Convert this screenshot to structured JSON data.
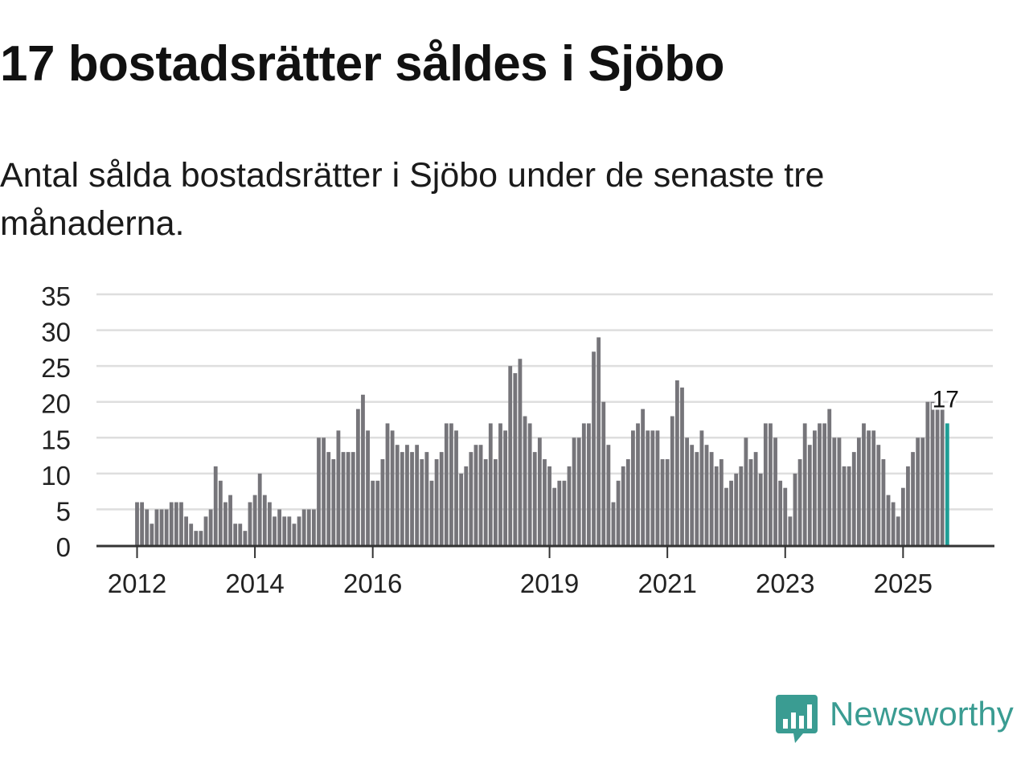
{
  "title": "17 bostadsrätter såldes i Sjöbo",
  "subtitle": "Antal sålda bostadsrätter i Sjöbo under de senaste tre månaderna.",
  "logo": {
    "text": "Newsworthy",
    "icon": "newsworthy-logo-icon",
    "color": "#3a9c92"
  },
  "colors": {
    "bar": "#76757a",
    "highlight": "#1f9e96",
    "grid": "#dedede",
    "axis": "#333333",
    "text": "#222222"
  },
  "chart_data": {
    "type": "bar",
    "title": "17 bostadsrätter såldes i Sjöbo",
    "xlabel": "",
    "ylabel": "",
    "ylim": [
      0,
      35
    ],
    "yticks": [
      0,
      5,
      10,
      15,
      20,
      25,
      30,
      35
    ],
    "xtick_labels": [
      "2012",
      "2014",
      "2016",
      "2019",
      "2021",
      "2023",
      "2025"
    ],
    "xtick_positions": [
      0,
      24,
      48,
      84,
      108,
      132,
      156
    ],
    "start": "2012-01",
    "grid": true,
    "legend": "none",
    "values": [
      6,
      6,
      5,
      3,
      5,
      5,
      5,
      6,
      6,
      6,
      4,
      3,
      2,
      2,
      4,
      5,
      11,
      9,
      6,
      7,
      3,
      3,
      2,
      6,
      7,
      10,
      7,
      6,
      4,
      5,
      4,
      4,
      3,
      4,
      5,
      5,
      5,
      15,
      15,
      13,
      12,
      16,
      13,
      13,
      13,
      19,
      21,
      16,
      9,
      9,
      12,
      17,
      16,
      14,
      13,
      14,
      13,
      14,
      12,
      13,
      9,
      12,
      13,
      17,
      17,
      16,
      10,
      11,
      13,
      14,
      14,
      12,
      17,
      12,
      17,
      16,
      25,
      24,
      26,
      18,
      17,
      13,
      15,
      12,
      11,
      8,
      9,
      9,
      11,
      15,
      15,
      17,
      17,
      27,
      29,
      20,
      14,
      6,
      9,
      11,
      12,
      16,
      17,
      19,
      16,
      16,
      16,
      12,
      12,
      18,
      23,
      22,
      15,
      14,
      13,
      16,
      14,
      13,
      11,
      12,
      8,
      9,
      10,
      11,
      15,
      12,
      13,
      10,
      17,
      17,
      15,
      9,
      8,
      4,
      10,
      12,
      17,
      14,
      16,
      17,
      17,
      19,
      15,
      15,
      11,
      11,
      13,
      15,
      17,
      16,
      16,
      14,
      12,
      7,
      6,
      4,
      8,
      11,
      13,
      15,
      15,
      20,
      20,
      19,
      19,
      17
    ],
    "highlight_index": 165,
    "annotation": {
      "index": 165,
      "label": "17"
    }
  }
}
